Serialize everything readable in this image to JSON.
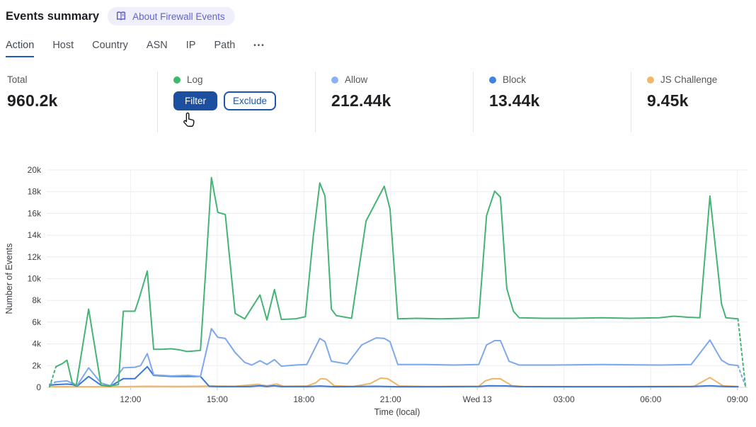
{
  "header": {
    "title": "Events summary",
    "about_badge": {
      "icon": "open-book-icon",
      "label": "About Firewall Events"
    }
  },
  "tabs": {
    "items": [
      {
        "label": "Action",
        "active": true
      },
      {
        "label": "Host",
        "active": false
      },
      {
        "label": "Country",
        "active": false
      },
      {
        "label": "ASN",
        "active": false
      },
      {
        "label": "IP",
        "active": false
      },
      {
        "label": "Path",
        "active": false
      }
    ],
    "more_label": "•••"
  },
  "stats": {
    "columns": [
      {
        "label": "Total",
        "value": "960.2k"
      },
      {
        "label": "Log",
        "dot_color": "#3cb96a",
        "buttons": {
          "filter": "Filter",
          "exclude": "Exclude"
        }
      },
      {
        "label": "Allow",
        "value": "212.44k",
        "dot_color": "#8ab2f0"
      },
      {
        "label": "Block",
        "value": "13.44k",
        "dot_color": "#4083e0"
      },
      {
        "label": "JS Challenge",
        "value": "9.45k",
        "dot_color": "#f1b868"
      }
    ]
  },
  "chart_data": {
    "type": "line",
    "xlabel": "Time (local)",
    "ylabel": "Number of Events",
    "units": "thousands of events (k)",
    "x_unit": "hours from chart start (~09:00 Tue) to ~09:00 Wed 13",
    "xlim": [
      0,
      24.25
    ],
    "ylim": [
      0,
      20
    ],
    "grid": true,
    "legend_position": "stat cards above chart",
    "y_ticks": [
      {
        "v": 0,
        "label": "0"
      },
      {
        "v": 2,
        "label": "2k"
      },
      {
        "v": 4,
        "label": "4k"
      },
      {
        "v": 6,
        "label": "6k"
      },
      {
        "v": 8,
        "label": "8k"
      },
      {
        "v": 10,
        "label": "10k"
      },
      {
        "v": 12,
        "label": "12k"
      },
      {
        "v": 14,
        "label": "14k"
      },
      {
        "v": 16,
        "label": "16k"
      },
      {
        "v": 18,
        "label": "18k"
      },
      {
        "v": 20,
        "label": "20k"
      }
    ],
    "x_ticks": [
      {
        "t": 2.9,
        "label": "12:00"
      },
      {
        "t": 5.9,
        "label": "15:00"
      },
      {
        "t": 8.9,
        "label": "18:00"
      },
      {
        "t": 11.9,
        "label": "21:00"
      },
      {
        "t": 14.9,
        "label": "Wed 13"
      },
      {
        "t": 17.9,
        "label": "03:00"
      },
      {
        "t": 20.9,
        "label": "06:00"
      },
      {
        "t": 23.9,
        "label": "09:00"
      }
    ],
    "series": [
      {
        "name": "Log",
        "color": "#45b374",
        "dashed_start": true,
        "dashed_end": true,
        "points": [
          [
            0.1,
            0.05
          ],
          [
            0.32,
            1.9
          ],
          [
            0.55,
            2.2
          ],
          [
            0.7,
            2.5
          ],
          [
            0.88,
            0.45
          ],
          [
            1.02,
            0.15
          ],
          [
            1.45,
            7.2
          ],
          [
            1.88,
            0.2
          ],
          [
            2.2,
            0.15
          ],
          [
            2.48,
            0.25
          ],
          [
            2.65,
            7.0
          ],
          [
            3.05,
            7.0
          ],
          [
            3.2,
            8.2
          ],
          [
            3.48,
            10.7
          ],
          [
            3.7,
            3.5
          ],
          [
            4.0,
            3.5
          ],
          [
            4.3,
            3.55
          ],
          [
            4.6,
            3.45
          ],
          [
            4.85,
            3.3
          ],
          [
            5.1,
            3.35
          ],
          [
            5.32,
            3.4
          ],
          [
            5.52,
            11.5
          ],
          [
            5.7,
            19.3
          ],
          [
            5.92,
            16.1
          ],
          [
            6.18,
            15.9
          ],
          [
            6.52,
            6.8
          ],
          [
            6.85,
            6.3
          ],
          [
            7.38,
            8.5
          ],
          [
            7.62,
            6.2
          ],
          [
            7.88,
            9.0
          ],
          [
            8.12,
            6.25
          ],
          [
            8.6,
            6.3
          ],
          [
            8.95,
            6.5
          ],
          [
            9.22,
            13.8
          ],
          [
            9.45,
            18.8
          ],
          [
            9.63,
            17.6
          ],
          [
            9.85,
            7.2
          ],
          [
            10.02,
            6.6
          ],
          [
            10.55,
            6.35
          ],
          [
            11.05,
            15.3
          ],
          [
            11.68,
            18.5
          ],
          [
            11.88,
            16.4
          ],
          [
            12.15,
            6.3
          ],
          [
            12.8,
            6.35
          ],
          [
            13.6,
            6.3
          ],
          [
            14.4,
            6.35
          ],
          [
            14.95,
            6.4
          ],
          [
            15.22,
            15.8
          ],
          [
            15.5,
            18.05
          ],
          [
            15.7,
            17.5
          ],
          [
            15.92,
            9.1
          ],
          [
            16.15,
            7.0
          ],
          [
            16.35,
            6.4
          ],
          [
            17.2,
            6.35
          ],
          [
            18.2,
            6.35
          ],
          [
            19.2,
            6.4
          ],
          [
            20.2,
            6.35
          ],
          [
            21.2,
            6.4
          ],
          [
            21.7,
            6.55
          ],
          [
            22.2,
            6.45
          ],
          [
            22.6,
            6.4
          ],
          [
            22.95,
            17.6
          ],
          [
            23.35,
            7.7
          ],
          [
            23.5,
            6.4
          ],
          [
            23.92,
            6.3
          ],
          [
            24.18,
            0.1
          ]
        ]
      },
      {
        "name": "Allow",
        "color": "#7ea8ec",
        "dashed_start": true,
        "dashed_end": true,
        "points": [
          [
            0.1,
            0.3
          ],
          [
            0.32,
            0.5
          ],
          [
            0.7,
            0.6
          ],
          [
            0.9,
            0.35
          ],
          [
            1.05,
            0.15
          ],
          [
            1.45,
            1.8
          ],
          [
            1.88,
            0.4
          ],
          [
            2.2,
            0.15
          ],
          [
            2.65,
            1.8
          ],
          [
            3.05,
            1.85
          ],
          [
            3.25,
            2.0
          ],
          [
            3.48,
            3.1
          ],
          [
            3.7,
            1.15
          ],
          [
            4.3,
            1.05
          ],
          [
            4.9,
            1.1
          ],
          [
            5.32,
            1.0
          ],
          [
            5.52,
            3.3
          ],
          [
            5.7,
            5.4
          ],
          [
            5.92,
            4.6
          ],
          [
            6.18,
            4.5
          ],
          [
            6.52,
            3.2
          ],
          [
            6.85,
            2.3
          ],
          [
            7.1,
            2.05
          ],
          [
            7.38,
            2.45
          ],
          [
            7.62,
            2.1
          ],
          [
            7.88,
            2.55
          ],
          [
            8.12,
            1.95
          ],
          [
            8.6,
            2.05
          ],
          [
            9.0,
            2.1
          ],
          [
            9.45,
            4.5
          ],
          [
            9.63,
            4.2
          ],
          [
            9.85,
            2.4
          ],
          [
            10.4,
            2.15
          ],
          [
            10.9,
            3.9
          ],
          [
            11.4,
            4.55
          ],
          [
            11.68,
            4.5
          ],
          [
            11.88,
            4.2
          ],
          [
            12.15,
            2.1
          ],
          [
            13.1,
            2.1
          ],
          [
            14.1,
            2.05
          ],
          [
            14.95,
            2.1
          ],
          [
            15.22,
            3.9
          ],
          [
            15.5,
            4.3
          ],
          [
            15.7,
            4.3
          ],
          [
            16.0,
            2.4
          ],
          [
            16.35,
            2.05
          ],
          [
            17.5,
            2.05
          ],
          [
            19.2,
            2.1
          ],
          [
            21.2,
            2.05
          ],
          [
            22.3,
            2.1
          ],
          [
            22.95,
            4.35
          ],
          [
            23.35,
            2.5
          ],
          [
            23.6,
            2.1
          ],
          [
            23.92,
            2.0
          ],
          [
            24.18,
            0.1
          ]
        ]
      },
      {
        "name": "Block",
        "color": "#3a78d4",
        "dashed_start": false,
        "dashed_end": false,
        "points": [
          [
            0.1,
            0.2
          ],
          [
            0.32,
            0.25
          ],
          [
            0.7,
            0.3
          ],
          [
            0.9,
            0.25
          ],
          [
            1.05,
            0.1
          ],
          [
            1.45,
            1.0
          ],
          [
            1.88,
            0.2
          ],
          [
            2.2,
            0.1
          ],
          [
            2.65,
            0.8
          ],
          [
            3.05,
            0.8
          ],
          [
            3.48,
            1.9
          ],
          [
            3.7,
            1.1
          ],
          [
            4.3,
            1.0
          ],
          [
            4.9,
            1.0
          ],
          [
            5.32,
            1.0
          ],
          [
            5.62,
            0.1
          ],
          [
            5.92,
            0.07
          ],
          [
            7.0,
            0.07
          ],
          [
            7.38,
            0.15
          ],
          [
            7.62,
            0.08
          ],
          [
            7.88,
            0.15
          ],
          [
            8.12,
            0.07
          ],
          [
            9.0,
            0.07
          ],
          [
            9.45,
            0.12
          ],
          [
            10.0,
            0.06
          ],
          [
            11.4,
            0.1
          ],
          [
            12.15,
            0.06
          ],
          [
            13.6,
            0.06
          ],
          [
            14.95,
            0.08
          ],
          [
            15.3,
            0.15
          ],
          [
            15.9,
            0.13
          ],
          [
            16.35,
            0.07
          ],
          [
            18.2,
            0.06
          ],
          [
            20.2,
            0.06
          ],
          [
            22.3,
            0.07
          ],
          [
            22.95,
            0.15
          ],
          [
            23.5,
            0.07
          ],
          [
            23.92,
            0.06
          ]
        ]
      },
      {
        "name": "JS Challenge",
        "color": "#f0b465",
        "dashed_start": false,
        "dashed_end": false,
        "points": [
          [
            0.1,
            0.07
          ],
          [
            1.0,
            0.06
          ],
          [
            2.2,
            0.06
          ],
          [
            3.05,
            0.08
          ],
          [
            3.48,
            0.1
          ],
          [
            4.5,
            0.08
          ],
          [
            5.32,
            0.1
          ],
          [
            5.7,
            0.12
          ],
          [
            6.5,
            0.1
          ],
          [
            7.3,
            0.28
          ],
          [
            7.62,
            0.15
          ],
          [
            7.95,
            0.3
          ],
          [
            8.2,
            0.1
          ],
          [
            9.0,
            0.12
          ],
          [
            9.3,
            0.4
          ],
          [
            9.48,
            0.8
          ],
          [
            9.68,
            0.75
          ],
          [
            9.95,
            0.15
          ],
          [
            10.6,
            0.08
          ],
          [
            11.2,
            0.35
          ],
          [
            11.55,
            0.85
          ],
          [
            11.8,
            0.8
          ],
          [
            12.2,
            0.12
          ],
          [
            13.1,
            0.08
          ],
          [
            14.95,
            0.1
          ],
          [
            15.18,
            0.6
          ],
          [
            15.42,
            0.8
          ],
          [
            15.7,
            0.78
          ],
          [
            16.1,
            0.15
          ],
          [
            16.5,
            0.08
          ],
          [
            18.2,
            0.07
          ],
          [
            20.2,
            0.07
          ],
          [
            22.4,
            0.1
          ],
          [
            22.95,
            0.9
          ],
          [
            23.4,
            0.15
          ],
          [
            23.92,
            0.08
          ]
        ]
      }
    ]
  }
}
